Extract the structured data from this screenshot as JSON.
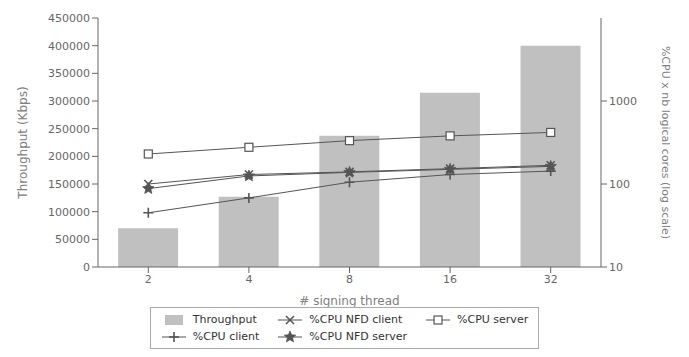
{
  "chart_data": {
    "type": "bar",
    "categories": [
      "2",
      "4",
      "8",
      "16",
      "32"
    ],
    "xlabel": "# signing thread",
    "ylabel": "Throughput (Kbps)",
    "y2label": "%CPU x nb logical cores (log scale)",
    "ylim": [
      0,
      450000
    ],
    "yticks": [
      0,
      50000,
      100000,
      150000,
      200000,
      250000,
      300000,
      350000,
      400000,
      450000
    ],
    "y2lim": [
      10,
      10000
    ],
    "y2ticks": [
      10,
      100,
      1000
    ],
    "log": "y2",
    "grid": false,
    "legend": "bottom",
    "series": [
      {
        "name": "Throughput",
        "type": "bar",
        "color": "#c0c0c0",
        "values": [
          70000,
          127000,
          237000,
          315000,
          400000
        ]
      },
      {
        "name": "%CPU NFD client",
        "type": "line",
        "axis": "y2",
        "color": "#555555",
        "marker": "x",
        "values": [
          100,
          130,
          140,
          153,
          168
        ]
      },
      {
        "name": "%CPU server",
        "type": "line",
        "axis": "y2",
        "color": "#555555",
        "marker": "square",
        "values": [
          230,
          277,
          333,
          380,
          418
        ]
      },
      {
        "name": "%CPU client",
        "type": "line",
        "axis": "y2",
        "color": "#555555",
        "marker": "plus",
        "values": [
          45,
          68,
          105,
          130,
          143
        ]
      },
      {
        "name": "%CPU NFD server",
        "type": "line",
        "axis": "y2",
        "color": "#555555",
        "marker": "star",
        "values": [
          88,
          125,
          138,
          150,
          163
        ]
      }
    ]
  }
}
